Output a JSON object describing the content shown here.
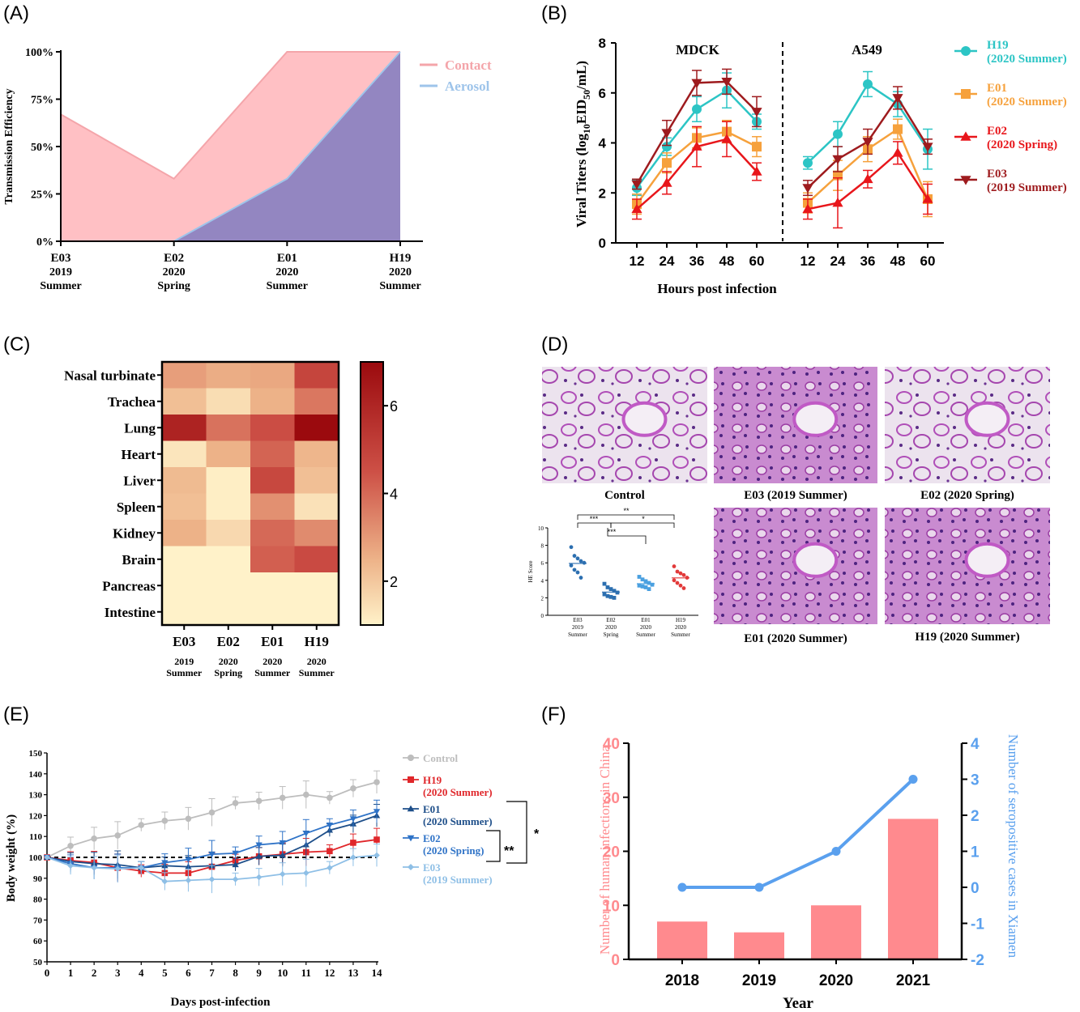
{
  "panel_labels": [
    "(A)",
    "(B)",
    "(C)",
    "(D)",
    "(E)",
    "(F)"
  ],
  "chart_data": [
    {
      "panel": "A",
      "type": "area",
      "ylabel": "Transmission Efficiency",
      "categories": [
        [
          "E03",
          "2019",
          "Summer"
        ],
        [
          "E02",
          "2020",
          "Spring"
        ],
        [
          "E01",
          "2020",
          "Summer"
        ],
        [
          "H19",
          "2020",
          "Summer"
        ]
      ],
      "yticks": [
        "0%",
        "25%",
        "50%",
        "75%",
        "100%"
      ],
      "ylim": [
        0,
        100
      ],
      "legend_position": "top-right",
      "series": [
        {
          "name": "Contact",
          "color": "#ffc0c4",
          "line_color": "#f4a5aa",
          "values": [
            67,
            33,
            100,
            100
          ]
        },
        {
          "name": "Aerosol",
          "color": "#9386c1",
          "line_color": "#9ec4ea",
          "values": [
            0,
            0,
            33,
            100
          ]
        }
      ]
    },
    {
      "panel": "B",
      "type": "line",
      "ylabel": "Viral Titers (log10EID50/mL)",
      "xlabel": "Hours post infection",
      "ylim": [
        0,
        8
      ],
      "yticks": [
        "0",
        "2",
        "4",
        "6",
        "8"
      ],
      "x": [
        12,
        24,
        36,
        48,
        60
      ],
      "groups": [
        "MDCK",
        "A549"
      ],
      "series": [
        {
          "name": "H19",
          "sub": "(2020 Summer)",
          "color": "#2cc5c5",
          "marker": "circle",
          "MDCK": [
            2.2,
            3.85,
            5.35,
            6.1,
            4.85
          ],
          "A549": [
            3.2,
            4.35,
            6.35,
            5.55,
            3.75
          ],
          "MDCK_err": [
            0.3,
            0.35,
            0.5,
            0.7,
            0.3
          ],
          "A549_err": [
            0.25,
            0.5,
            0.5,
            0.5,
            0.8
          ]
        },
        {
          "name": "E01",
          "sub": "(2020 Summer)",
          "color": "#f6a13c",
          "marker": "square",
          "MDCK": [
            1.55,
            3.2,
            4.2,
            4.45,
            3.85
          ],
          "A549": [
            1.6,
            2.7,
            3.75,
            4.55,
            1.75
          ],
          "MDCK_err": [
            0.4,
            0.4,
            0.4,
            0.45,
            0.4
          ],
          "A549_err": [
            0.4,
            0.6,
            0.5,
            0.4,
            0.7
          ]
        },
        {
          "name": "E02",
          "sub": "(2020 Spring)",
          "color": "#e8161b",
          "marker": "triangle",
          "MDCK": [
            1.35,
            2.4,
            3.85,
            4.15,
            2.85
          ],
          "A549": [
            1.35,
            1.6,
            2.55,
            3.6,
            1.75
          ],
          "MDCK_err": [
            0.4,
            0.45,
            0.8,
            0.7,
            0.35
          ],
          "A549_err": [
            0.4,
            1.0,
            0.35,
            0.45,
            0.6
          ]
        },
        {
          "name": "E03",
          "sub": "(2019 Summer)",
          "color": "#9e1b1e",
          "marker": "triangle-down",
          "MDCK": [
            2.35,
            4.4,
            6.4,
            6.45,
            5.25
          ],
          "A549": [
            2.2,
            3.35,
            4.05,
            5.8,
            3.85
          ],
          "MDCK_err": [
            0.2,
            0.5,
            0.5,
            0.5,
            0.6
          ],
          "A549_err": [
            0.3,
            0.5,
            0.5,
            0.45,
            0.3
          ]
        }
      ]
    },
    {
      "panel": "C",
      "type": "heatmap",
      "rows": [
        "Nasal turbinate",
        "Trachea",
        "Lung",
        "Heart",
        "Liver",
        "Spleen",
        "Kidney",
        "Brain",
        "Pancreas",
        "Intestine"
      ],
      "columns": [
        [
          "E03",
          "2019",
          "Summer"
        ],
        [
          "E02",
          "2020",
          "Spring"
        ],
        [
          "E01",
          "2020",
          "Summer"
        ],
        [
          "H19",
          "2020",
          "Summer"
        ]
      ],
      "colorbar_ticks": [
        2,
        4,
        6
      ],
      "colorbar_range": [
        1,
        7
      ],
      "values": [
        [
          2.9,
          2.6,
          2.7,
          4.9
        ],
        [
          2.2,
          1.5,
          2.5,
          3.7
        ],
        [
          6.1,
          3.8,
          4.6,
          7.0
        ],
        [
          1.3,
          2.5,
          4.1,
          2.4
        ],
        [
          2.3,
          1.1,
          4.8,
          2.2
        ],
        [
          2.2,
          1.1,
          3.2,
          1.4
        ],
        [
          2.5,
          1.6,
          4.0,
          3.3
        ],
        [
          1.0,
          1.0,
          4.2,
          4.7
        ],
        [
          1.0,
          1.0,
          1.0,
          1.0
        ],
        [
          1.0,
          1.0,
          1.0,
          1.0
        ]
      ]
    },
    {
      "panel": "D",
      "type": "scatter",
      "ylabel": "HE Score",
      "ylim": [
        0,
        10
      ],
      "yticks": [
        "0",
        "2",
        "4",
        "6",
        "8",
        "10"
      ],
      "categories": [
        [
          "E03",
          "2019",
          "Summer"
        ],
        [
          "E02",
          "2020",
          "Spring"
        ],
        [
          "E01",
          "2020",
          "Summer"
        ],
        [
          "H19",
          "2020",
          "Summer"
        ]
      ],
      "colors": [
        "#2c6fb0",
        "#2c6fb0",
        "#4aa0e0",
        "#e23a3a"
      ],
      "points": [
        [
          7.8,
          6.8,
          6.5,
          6.2,
          6.0,
          5.7,
          5.2,
          4.9,
          4.3
        ],
        [
          3.6,
          3.2,
          3.0,
          2.8,
          2.6,
          2.4,
          2.2,
          2.1,
          2.0
        ],
        [
          4.4,
          4.1,
          3.9,
          3.7,
          3.5,
          3.4,
          3.3,
          3.2,
          3.0
        ],
        [
          5.6,
          5.0,
          4.8,
          4.6,
          4.3,
          4.0,
          3.7,
          3.4,
          3.1
        ]
      ],
      "significance": [
        "**",
        "***",
        "*",
        "***"
      ],
      "micrograph_captions": [
        "Control",
        "E03 (2019 Summer)",
        "E02 (2020 Spring)",
        "E01 (2020 Summer)",
        "H19 (2020 Summer)"
      ]
    },
    {
      "panel": "E",
      "type": "line",
      "ylabel": "Body weight (%)",
      "xlabel": "Days post-infection",
      "ylim": [
        50,
        150
      ],
      "yticks": [
        "50",
        "60",
        "70",
        "80",
        "90",
        "100",
        "110",
        "120",
        "130",
        "140",
        "150"
      ],
      "x": [
        0,
        1,
        2,
        3,
        4,
        5,
        6,
        7,
        8,
        9,
        10,
        11,
        12,
        13,
        14
      ],
      "significance": [
        "*",
        "**"
      ],
      "series": [
        {
          "name": "Control",
          "sub": "",
          "color": "#bdbdbd",
          "marker": "circle",
          "values": [
            100,
            105.5,
            109,
            110.5,
            115.5,
            117.5,
            118.5,
            121.5,
            126,
            127,
            128.5,
            130,
            128.5,
            133,
            136
          ]
        },
        {
          "name": "H19",
          "sub": "(2020 Summer)",
          "color": "#e0262a",
          "marker": "square",
          "values": [
            100,
            98.5,
            97.5,
            95,
            93.5,
            92.5,
            92.5,
            95.5,
            98.5,
            100.5,
            101.5,
            102.5,
            103,
            107,
            108.5
          ]
        },
        {
          "name": "E01",
          "sub": "(2020 Summer)",
          "color": "#1d4e89",
          "marker": "triangle",
          "values": [
            100,
            98,
            97,
            96.5,
            95,
            96,
            95.5,
            96,
            96.5,
            100.5,
            101,
            106,
            113,
            116,
            120
          ]
        },
        {
          "name": "E02",
          "sub": "(2020 Spring)",
          "color": "#2f73c7",
          "marker": "triangle-down",
          "values": [
            100,
            97,
            95,
            95,
            95,
            97.5,
            99,
            101.5,
            102,
            106,
            107,
            111.5,
            115.5,
            118.5,
            122
          ]
        },
        {
          "name": "E03",
          "sub": "(2019 Summer)",
          "color": "#8ebfe6",
          "marker": "diamond",
          "values": [
            100,
            96,
            95,
            94.5,
            95,
            88.5,
            89,
            89.5,
            89.5,
            90.5,
            92,
            92.5,
            95,
            100,
            101
          ]
        }
      ]
    },
    {
      "panel": "F",
      "type": "bar",
      "categories": [
        "2018",
        "2019",
        "2020",
        "2021"
      ],
      "xlabel": "Year",
      "ylabel": "Number of human infections in China",
      "y2label": "Number of seropositive cases in Xiamen",
      "ylim": [
        0,
        40
      ],
      "y2lim": [
        -2,
        4
      ],
      "yticks": [
        "0",
        "10",
        "20",
        "30",
        "40"
      ],
      "y2ticks": [
        "-2",
        "-1",
        "0",
        "1",
        "2",
        "3",
        "4"
      ],
      "series": [
        {
          "name": "Number of human infections in China",
          "type": "bar",
          "color": "#ff8a8e",
          "values": [
            7,
            5,
            10,
            26
          ]
        },
        {
          "name": "Number of seropositive cases in Xiamen",
          "type": "line",
          "color": "#5aa0ee",
          "values": [
            0,
            0,
            1,
            3
          ]
        }
      ]
    }
  ]
}
